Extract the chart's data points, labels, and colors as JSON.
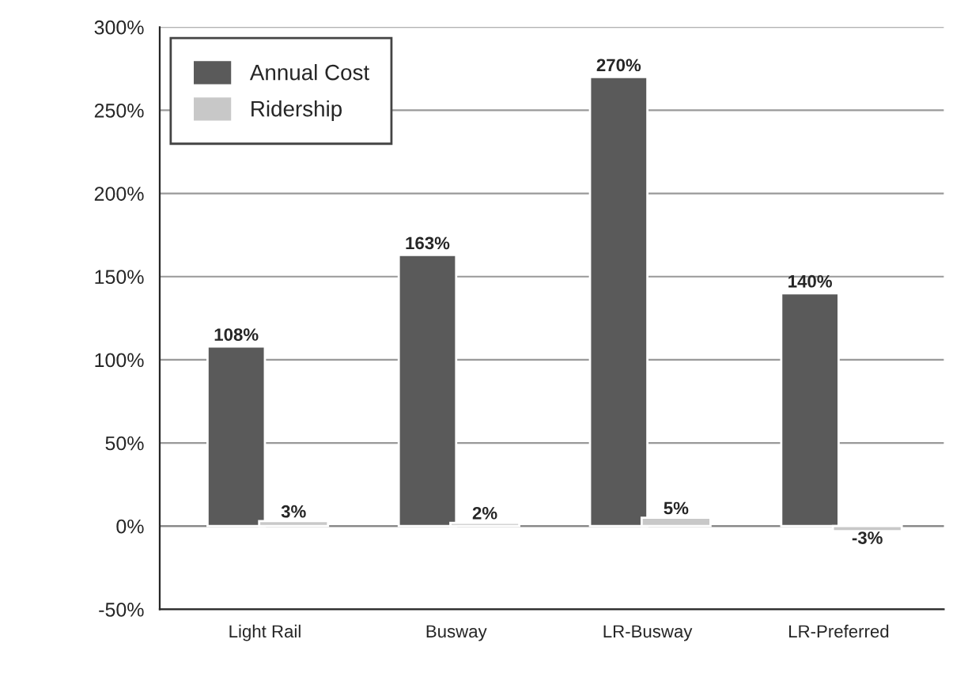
{
  "chart_data": {
    "type": "bar",
    "categories": [
      "Light Rail",
      "Busway",
      "LR-Busway",
      "LR-Preferred"
    ],
    "series": [
      {
        "name": "Annual Cost",
        "color": "#5a5a5a",
        "values": [
          108,
          163,
          270,
          140
        ],
        "value_labels": [
          "108%",
          "163%",
          "270%",
          "140%"
        ]
      },
      {
        "name": "Ridership",
        "color": "#c8c8c8",
        "values": [
          3,
          2,
          5,
          -3
        ],
        "value_labels": [
          "3%",
          "2%",
          "5%",
          "-3%"
        ]
      }
    ],
    "ylim": [
      -50,
      300
    ],
    "yticks": [
      {
        "value": -50,
        "label": "-50%"
      },
      {
        "value": 0,
        "label": "0%"
      },
      {
        "value": 50,
        "label": "50%"
      },
      {
        "value": 100,
        "label": "100%"
      },
      {
        "value": 150,
        "label": "150%"
      },
      {
        "value": 200,
        "label": "200%"
      },
      {
        "value": 250,
        "label": "250%"
      },
      {
        "value": 300,
        "label": "300%"
      }
    ],
    "grid": "y",
    "legend": "top left"
  }
}
